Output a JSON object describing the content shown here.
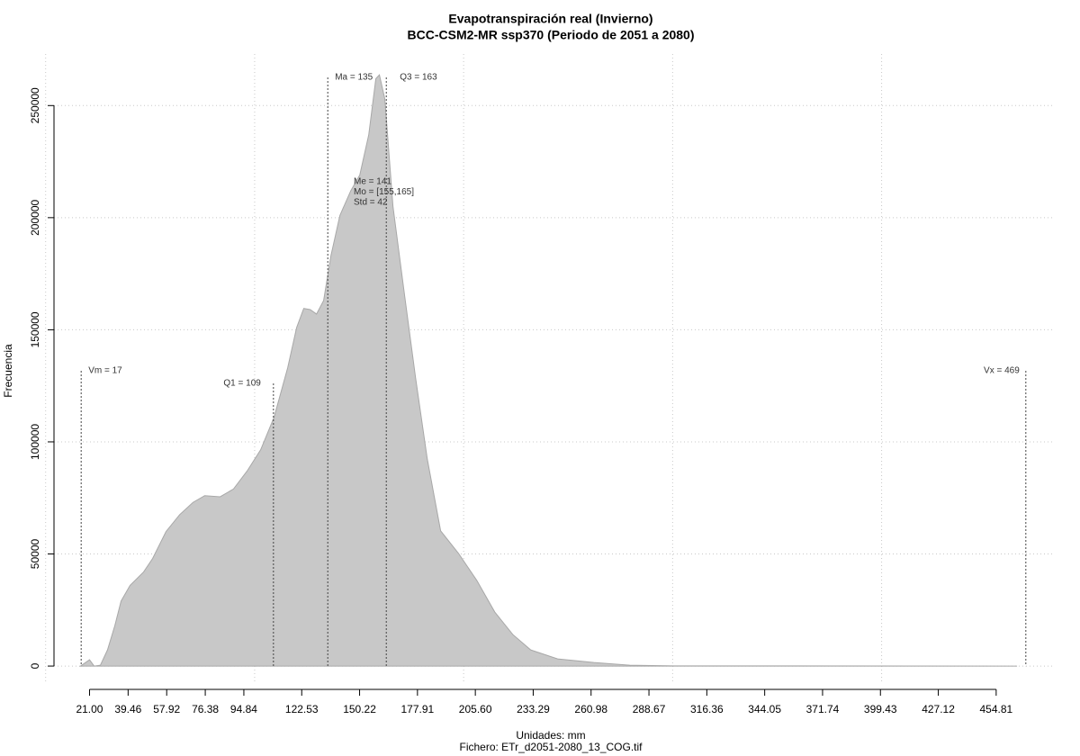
{
  "chart_data": {
    "type": "area",
    "title": "Evapotranspiración real (Invierno)",
    "subtitle": "BCC-CSM2-MR ssp370 (Periodo de 2051 a 2080)",
    "y_label": "Frecuencia",
    "x_label": "Unidades: mm",
    "caption": "Fichero: ETr_d2051-2080_13_COG.tif",
    "color": "#c8c8c8",
    "x": [
      16.7,
      21.0,
      23.2,
      26.2,
      29.6,
      33.1,
      36.1,
      40.4,
      46.9,
      51.2,
      57.6,
      64.1,
      70.5,
      76.1,
      83.5,
      89.9,
      96.4,
      102.9,
      109.3,
      115.8,
      120.1,
      123.5,
      126.6,
      129.6,
      133.0,
      136.5,
      140.8,
      146.0,
      150.3,
      154.6,
      158.0,
      159.7,
      162.3,
      166.2,
      171.8,
      177.0,
      182.6,
      189.0,
      197.6,
      206.3,
      214.9,
      223.5,
      232.1,
      245.0,
      262.3,
      279.5,
      301.0,
      464.8
    ],
    "values": [
      0,
      2800,
      0,
      400,
      7200,
      18000,
      29000,
      36000,
      42000,
      48000,
      60000,
      67500,
      73000,
      76000,
      75500,
      79000,
      87000,
      96500,
      111000,
      133000,
      151000,
      159500,
      159000,
      157000,
      163000,
      183000,
      201000,
      212000,
      219000,
      237000,
      262000,
      263700,
      253000,
      205000,
      165000,
      128600,
      92400,
      60300,
      50200,
      38200,
      24100,
      14100,
      7200,
      3200,
      1600,
      400,
      100,
      0
    ],
    "xlim": [
      4,
      482
    ],
    "ylim": [
      -8000,
      273000
    ],
    "xticks": [
      {
        "value": 21,
        "label": "21.00"
      },
      39.46,
      57.92,
      76.38,
      94.84,
      122.53,
      150.22,
      177.91,
      {
        "value": 205.6,
        "label": "205.60"
      },
      233.29,
      260.98,
      288.67,
      316.36,
      344.05,
      371.74,
      399.43,
      427.12,
      454.81
    ],
    "yticks": [
      0,
      50000,
      100000,
      150000,
      200000,
      250000
    ],
    "xgrid": [
      0,
      100,
      200,
      300,
      400
    ],
    "grid": true,
    "reference_lines": [
      {
        "label": "Vm = 17",
        "x": 17
      },
      {
        "label": "Q1 = 109",
        "x": 109
      },
      {
        "label": "Ma = 135",
        "x": 135
      },
      {
        "label": "Q3 = 163",
        "x": 163
      },
      {
        "label": "Vx = 469",
        "x": 469
      }
    ],
    "stats": [
      "Me = 141",
      "Mo = [155,165]",
      "Std = 42"
    ]
  }
}
